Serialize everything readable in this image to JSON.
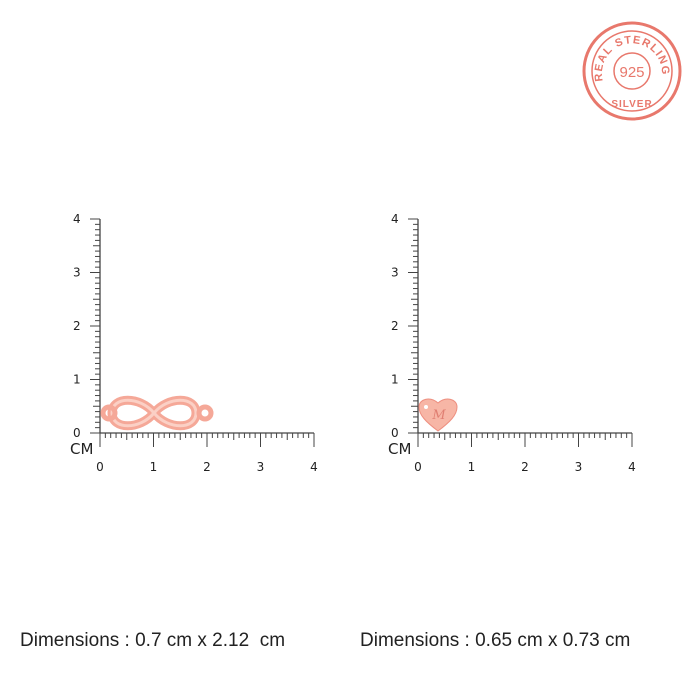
{
  "seal": {
    "top_text": "REAL STERLING",
    "center_text": "925",
    "bottom_text": "SILVER",
    "color": "#e8786c"
  },
  "rulers": [
    {
      "unit_label": "CM",
      "x_ticks": [
        "0",
        "1",
        "2",
        "3",
        "4"
      ],
      "y_ticks": [
        "0",
        "1",
        "2",
        "3",
        "4"
      ],
      "item": "infinity-connector",
      "item_height_cm": 0.7,
      "item_width_cm": 2.12
    },
    {
      "unit_label": "CM",
      "x_ticks": [
        "0",
        "1",
        "2",
        "3",
        "4"
      ],
      "y_ticks": [
        "0",
        "1",
        "2",
        "3",
        "4"
      ],
      "item": "heart-charm",
      "item_engraving": "M",
      "item_height_cm": 0.65,
      "item_width_cm": 0.73
    }
  ],
  "dimensions": [
    "Dimensions : 0.7 cm x 2.12  cm",
    "Dimensions : 0.65 cm x 0.73 cm"
  ],
  "colors": {
    "rose_gold": "#f7b6a6",
    "rose_gold_edge": "#ee8f80",
    "ruler": "#444444"
  }
}
